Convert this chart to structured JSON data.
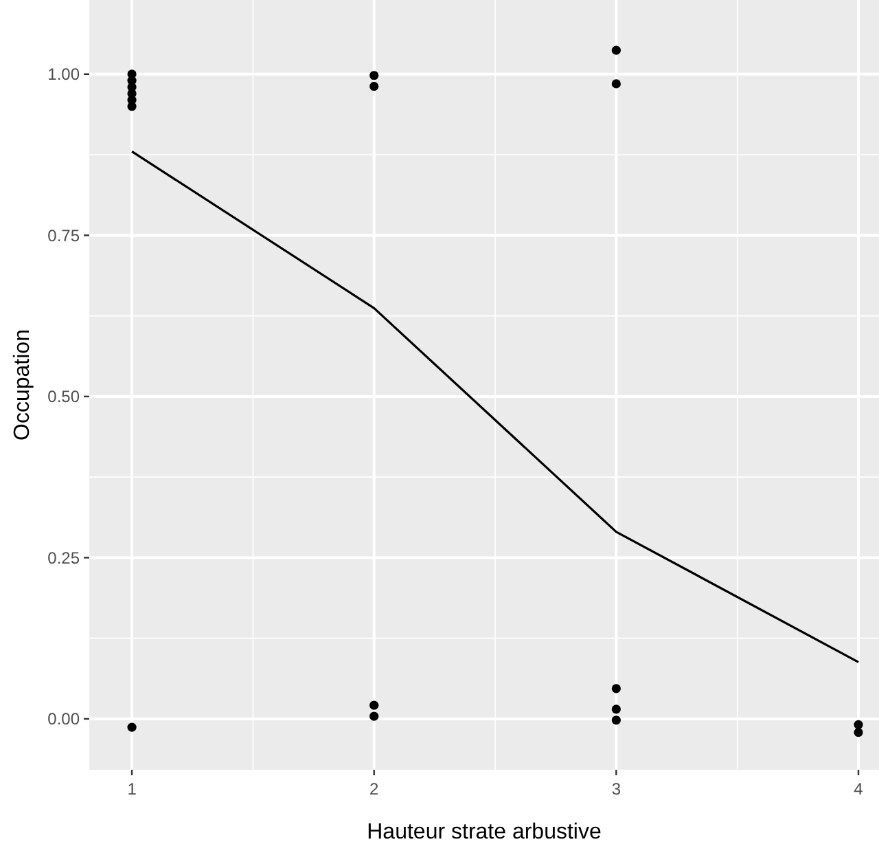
{
  "chart_data": {
    "type": "scatter",
    "xlabel": "Hauteur strate arbustive",
    "ylabel": "Occupation",
    "xlim": [
      0.824,
      4.085
    ],
    "ylim": [
      -0.079,
      1.115
    ],
    "xticks": [
      1,
      2,
      3,
      4
    ],
    "yticks": [
      {
        "value": 0,
        "label": "0.00"
      },
      {
        "value": 0.25,
        "label": "0.25"
      },
      {
        "value": 0.5,
        "label": "0.50"
      },
      {
        "value": 0.75,
        "label": "0.75"
      },
      {
        "value": 1,
        "label": "1.00"
      }
    ],
    "grid": true,
    "marker": "circle",
    "series": [
      {
        "color": "#000000",
        "x": [
          1,
          1,
          1,
          1,
          1,
          1,
          1,
          2,
          2,
          2,
          2,
          3,
          3,
          3,
          3,
          3,
          4,
          4
        ],
        "values": [
          1.0,
          0.99,
          0.98,
          0.97,
          0.96,
          0.95,
          -0.013,
          0.998,
          0.981,
          0.021,
          0.004,
          1.037,
          0.985,
          0.047,
          0.015,
          -0.002,
          -0.009,
          -0.021
        ]
      },
      {
        "type": "line",
        "color": "#000000",
        "marker": "none",
        "x": [
          1,
          2,
          3,
          4
        ],
        "values": [
          0.88,
          0.637,
          0.29,
          0.088
        ]
      }
    ]
  }
}
